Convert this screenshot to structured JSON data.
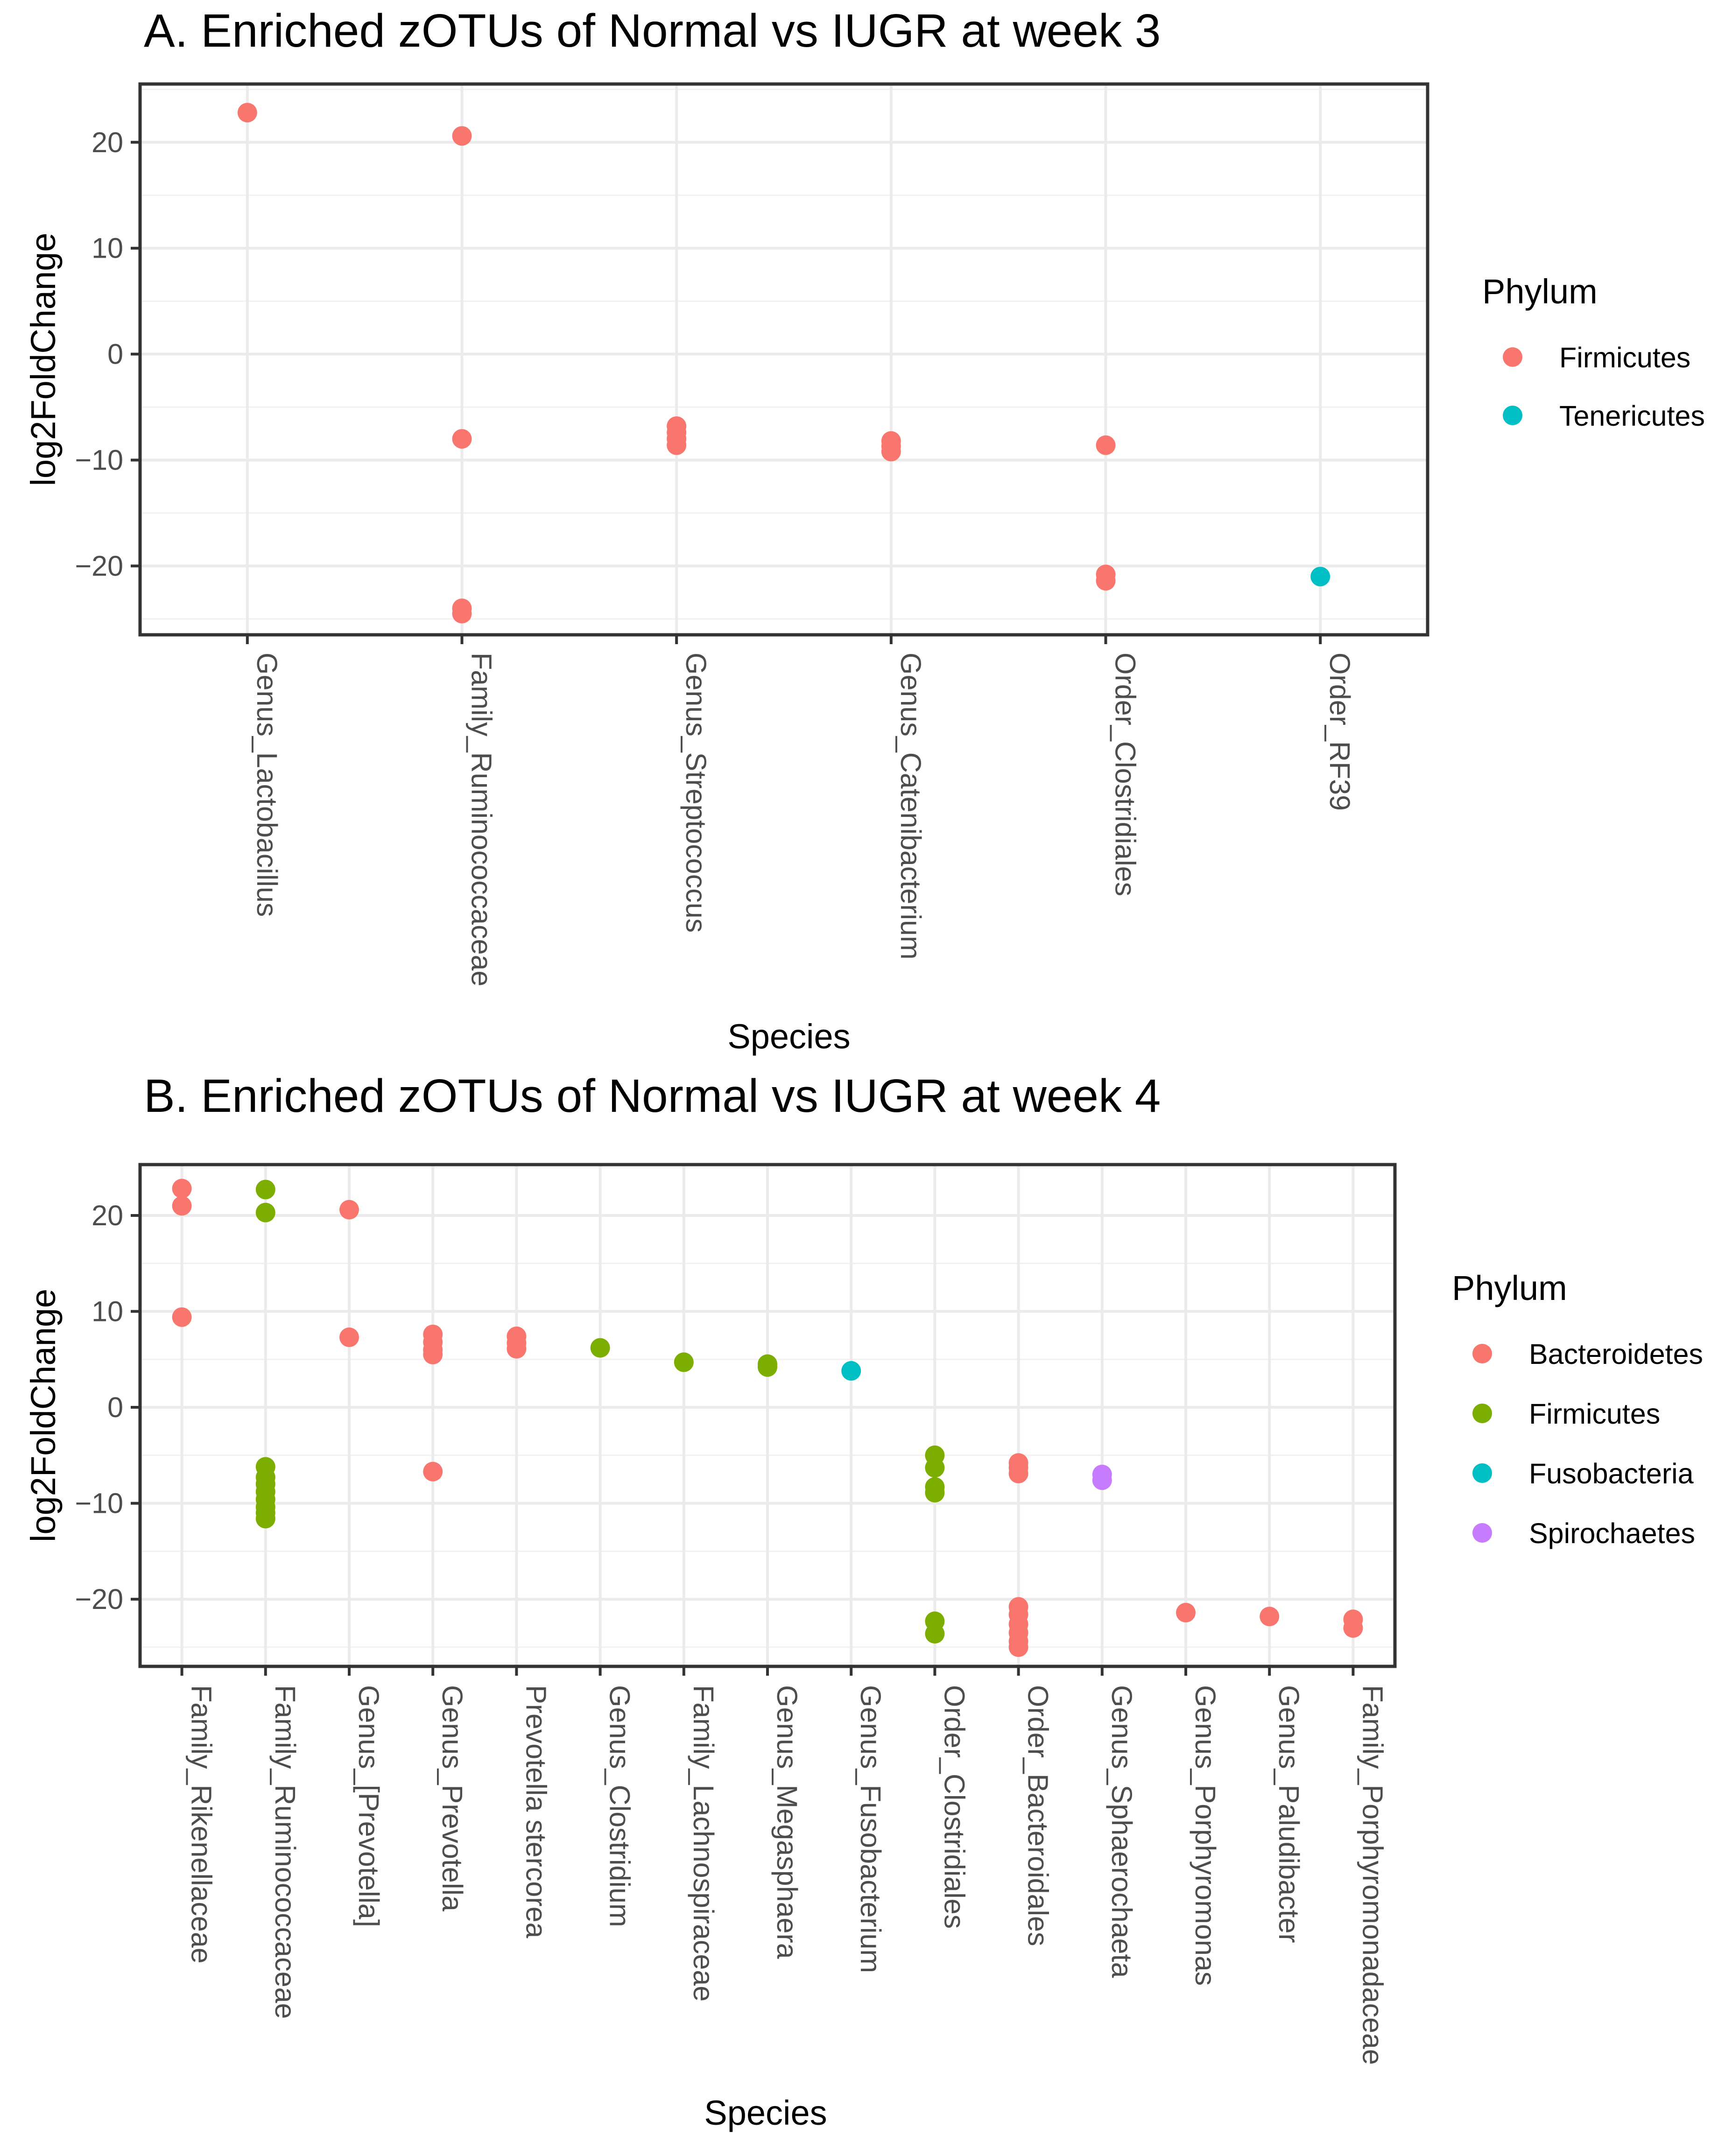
{
  "chart_data": [
    {
      "type": "scatter",
      "title": "A. Enriched zOTUs of Normal vs IUGR at week 3",
      "xlabel": "Species",
      "ylabel": "log2FoldChange",
      "ylim": [
        -26.5,
        25.5
      ],
      "yticks": [
        -20,
        -10,
        0,
        10,
        20
      ],
      "ytick_labels": [
        "−20",
        "−10",
        "0",
        "10",
        "20"
      ],
      "grid": true,
      "categories": [
        "Genus_Lactobacillus",
        "Family_Ruminococcaceae",
        "Genus_Streptococcus",
        "Genus_Catenibacterium",
        "Order_Clostridiales",
        "Order_RF39"
      ],
      "legend": {
        "title": "Phylum",
        "position": "right",
        "items": [
          {
            "label": "Firmicutes",
            "color": "#f8766d"
          },
          {
            "label": "Tenericutes",
            "color": "#00bfc4"
          }
        ]
      },
      "series": [
        {
          "name": "Firmicutes",
          "color": "#f8766d",
          "points": [
            {
              "category": "Genus_Lactobacillus",
              "y": 22.8
            },
            {
              "category": "Family_Ruminococcaceae",
              "y": 20.6
            },
            {
              "category": "Family_Ruminococcaceae",
              "y": -8.0
            },
            {
              "category": "Family_Ruminococcaceae",
              "y": -24.0
            },
            {
              "category": "Family_Ruminococcaceae",
              "y": -24.5
            },
            {
              "category": "Genus_Streptococcus",
              "y": -6.8
            },
            {
              "category": "Genus_Streptococcus",
              "y": -7.4
            },
            {
              "category": "Genus_Streptococcus",
              "y": -8.0
            },
            {
              "category": "Genus_Streptococcus",
              "y": -8.6
            },
            {
              "category": "Genus_Catenibacterium",
              "y": -8.2
            },
            {
              "category": "Genus_Catenibacterium",
              "y": -8.7
            },
            {
              "category": "Genus_Catenibacterium",
              "y": -9.2
            },
            {
              "category": "Order_Clostridiales",
              "y": -8.6
            },
            {
              "category": "Order_Clostridiales",
              "y": -20.8
            },
            {
              "category": "Order_Clostridiales",
              "y": -21.4
            }
          ]
        },
        {
          "name": "Tenericutes",
          "color": "#00bfc4",
          "points": [
            {
              "category": "Order_RF39",
              "y": -21.0
            }
          ]
        }
      ]
    },
    {
      "type": "scatter",
      "title": "B. Enriched zOTUs of Normal vs IUGR at week 4",
      "xlabel": "Species",
      "ylabel": "log2FoldChange",
      "ylim": [
        -27.0,
        25.3
      ],
      "yticks": [
        -20,
        -10,
        0,
        10,
        20
      ],
      "ytick_labels": [
        "−20",
        "−10",
        "0",
        "10",
        "20"
      ],
      "grid": true,
      "categories": [
        "Family_Rikenellaceae",
        "Family_Ruminococcaceae",
        "Genus_[Prevotella]",
        "Genus_Prevotella",
        "Prevotella stercorea",
        "Genus_Clostridium",
        "Family_Lachnospiraceae",
        "Genus_Megasphaera",
        "Genus_Fusobacterium",
        "Order_Clostridiales",
        "Order_Bacteroidales",
        "Genus_Sphaerochaeta",
        "Genus_Porphyromonas",
        "Genus_Paludibacter",
        "Family_Porphyromonadaceae"
      ],
      "legend": {
        "title": "Phylum",
        "position": "right",
        "items": [
          {
            "label": "Bacteroidetes",
            "color": "#f8766d"
          },
          {
            "label": "Firmicutes",
            "color": "#7cae00"
          },
          {
            "label": "Fusobacteria",
            "color": "#00bfc4"
          },
          {
            "label": "Spirochaetes",
            "color": "#c77cff"
          }
        ]
      },
      "series": [
        {
          "name": "Bacteroidetes",
          "color": "#f8766d",
          "points": [
            {
              "category": "Family_Rikenellaceae",
              "y": 22.8
            },
            {
              "category": "Family_Rikenellaceae",
              "y": 21.0
            },
            {
              "category": "Family_Rikenellaceae",
              "y": 9.4
            },
            {
              "category": "Genus_[Prevotella]",
              "y": 20.6
            },
            {
              "category": "Genus_[Prevotella]",
              "y": 7.3
            },
            {
              "category": "Genus_Prevotella",
              "y": 7.6
            },
            {
              "category": "Genus_Prevotella",
              "y": 6.8
            },
            {
              "category": "Genus_Prevotella",
              "y": 6.0
            },
            {
              "category": "Genus_Prevotella",
              "y": 5.5
            },
            {
              "category": "Genus_Prevotella",
              "y": -6.7
            },
            {
              "category": "Prevotella stercorea",
              "y": 7.4
            },
            {
              "category": "Prevotella stercorea",
              "y": 6.7
            },
            {
              "category": "Prevotella stercorea",
              "y": 6.1
            },
            {
              "category": "Order_Bacteroidales",
              "y": -5.8
            },
            {
              "category": "Order_Bacteroidales",
              "y": -6.3
            },
            {
              "category": "Order_Bacteroidales",
              "y": -6.9
            },
            {
              "category": "Order_Bacteroidales",
              "y": -20.8
            },
            {
              "category": "Order_Bacteroidales",
              "y": -21.6
            },
            {
              "category": "Order_Bacteroidales",
              "y": -22.6
            },
            {
              "category": "Order_Bacteroidales",
              "y": -23.5
            },
            {
              "category": "Order_Bacteroidales",
              "y": -24.4
            },
            {
              "category": "Order_Bacteroidales",
              "y": -25.0
            },
            {
              "category": "Genus_Porphyromonas",
              "y": -21.4
            },
            {
              "category": "Genus_Paludibacter",
              "y": -21.8
            },
            {
              "category": "Family_Porphyromonadaceae",
              "y": -22.1
            },
            {
              "category": "Family_Porphyromonadaceae",
              "y": -23.0
            }
          ]
        },
        {
          "name": "Firmicutes",
          "color": "#7cae00",
          "points": [
            {
              "category": "Family_Ruminococcaceae",
              "y": 22.7
            },
            {
              "category": "Family_Ruminococcaceae",
              "y": 20.3
            },
            {
              "category": "Family_Ruminococcaceae",
              "y": -6.2
            },
            {
              "category": "Family_Ruminococcaceae",
              "y": -7.3
            },
            {
              "category": "Family_Ruminococcaceae",
              "y": -8.0
            },
            {
              "category": "Family_Ruminococcaceae",
              "y": -8.8
            },
            {
              "category": "Family_Ruminococcaceae",
              "y": -9.6
            },
            {
              "category": "Family_Ruminococcaceae",
              "y": -10.4
            },
            {
              "category": "Family_Ruminococcaceae",
              "y": -11.0
            },
            {
              "category": "Family_Ruminococcaceae",
              "y": -11.6
            },
            {
              "category": "Genus_Clostridium",
              "y": 6.2
            },
            {
              "category": "Family_Lachnospiraceae",
              "y": 4.7
            },
            {
              "category": "Genus_Megasphaera",
              "y": 4.5
            },
            {
              "category": "Genus_Megasphaera",
              "y": 4.2
            },
            {
              "category": "Order_Clostridiales",
              "y": -5.0
            },
            {
              "category": "Order_Clostridiales",
              "y": -6.3
            },
            {
              "category": "Order_Clostridiales",
              "y": -8.3
            },
            {
              "category": "Order_Clostridiales",
              "y": -8.9
            },
            {
              "category": "Order_Clostridiales",
              "y": -22.3
            },
            {
              "category": "Order_Clostridiales",
              "y": -23.6
            }
          ]
        },
        {
          "name": "Fusobacteria",
          "color": "#00bfc4",
          "points": [
            {
              "category": "Genus_Fusobacterium",
              "y": 3.8
            }
          ]
        },
        {
          "name": "Spirochaetes",
          "color": "#c77cff",
          "points": [
            {
              "category": "Genus_Sphaerochaeta",
              "y": -7.0
            },
            {
              "category": "Genus_Sphaerochaeta",
              "y": -7.6
            }
          ]
        }
      ]
    }
  ]
}
